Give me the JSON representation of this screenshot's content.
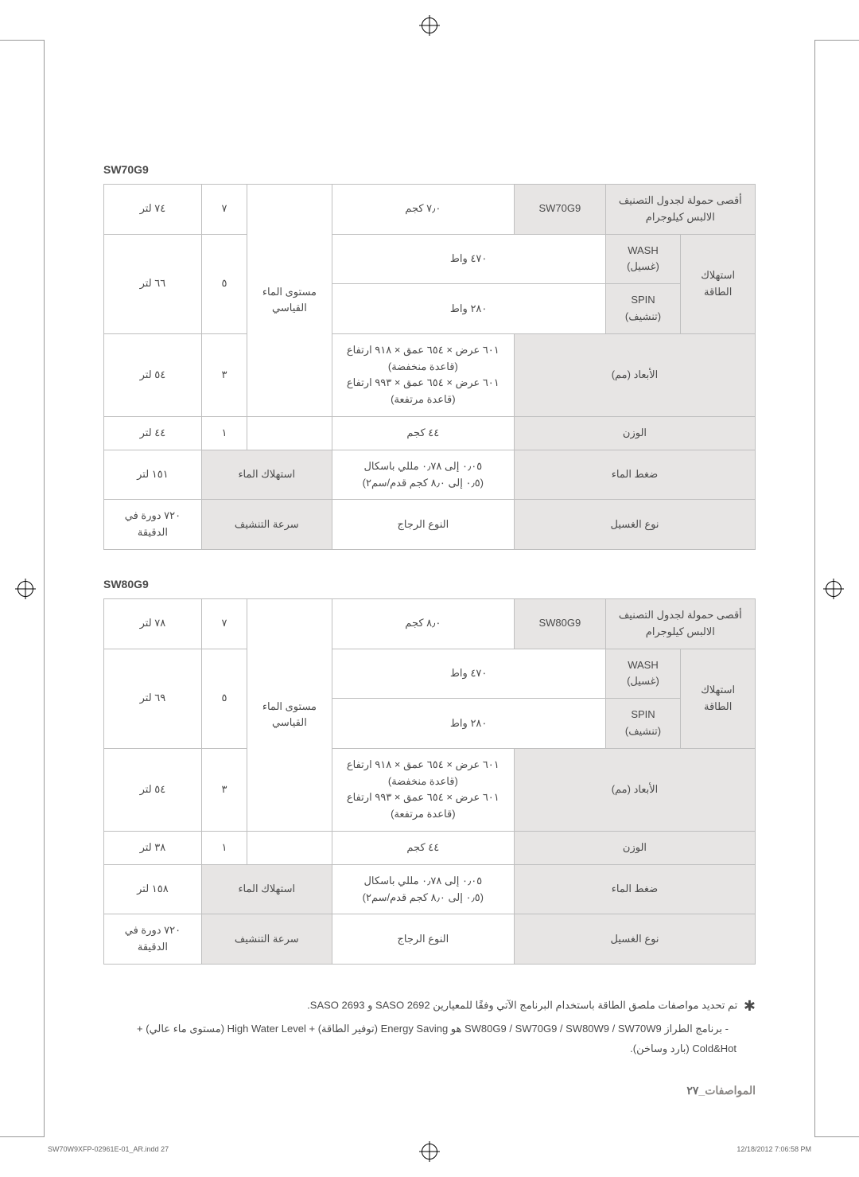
{
  "colors": {
    "border": "#bfbfbf",
    "shade": "#e7e5e4",
    "text": "#4a4a4a",
    "footer": "#8a8785"
  },
  "fonts": {
    "body_size_pt": 13,
    "heading_size_pt": 14,
    "heading_weight": "bold"
  },
  "tables": [
    {
      "heading": "SW70G9",
      "rows": {
        "capacity_label": "أقصى حمولة لجدول التصنيف الالبس كيلوجرام",
        "model": "SW70G9",
        "capacity_value": "٧٫٠ كجم",
        "power_label": "استهلاك الطاقة",
        "wash_label": "WASH (غسيل)",
        "wash_value": "٤٧٠ واط",
        "spin_label": "SPIN (تنشيف)",
        "spin_value": "٢٨٠ واط",
        "dims_label": "الأبعاد (مم)",
        "dims_value": "٦٠١ عرض × ٦٥٤ عمق × ٩١٨ ارتفاع\n(قاعدة منخفضة)\n٦٠١ عرض × ٦٥٤ عمق × ٩٩٣ ارتفاع\n(قاعدة مرتفعة)",
        "weight_label": "الوزن",
        "weight_value": "٤٤ كجم",
        "pressure_label": "ضغط الماء",
        "pressure_value": "٠٫٠٥ إلى ٠٫٧٨ مللي باسكال\n(٠٫٥ إلى ٨٫٠ كجم قدم/سم٢)",
        "wash_type_label": "نوع الغسيل",
        "wash_type_value": "النوع الرجاج",
        "water_level_label": "مستوى الماء القياسي",
        "levels": [
          {
            "n": "٧",
            "v": "٧٤ لتر"
          },
          {
            "n": "٥",
            "v": "٦٦ لتر"
          },
          {
            "n": "٣",
            "v": "٥٤ لتر"
          },
          {
            "n": "١",
            "v": "٤٤ لتر"
          }
        ],
        "water_cons_label": "استهلاك الماء",
        "water_cons_value": "١٥١ لتر",
        "spin_speed_label": "سرعة التنشيف",
        "spin_speed_value": "٧٢٠ دورة في الدقيقة"
      }
    },
    {
      "heading": "SW80G9",
      "rows": {
        "capacity_label": "أقصى حمولة لجدول التصنيف الالبس كيلوجرام",
        "model": "SW80G9",
        "capacity_value": "٨٫٠ كجم",
        "power_label": "استهلاك الطاقة",
        "wash_label": "WASH (غسيل)",
        "wash_value": "٤٧٠ واط",
        "spin_label": "SPIN (تنشيف)",
        "spin_value": "٢٨٠ واط",
        "dims_label": "الأبعاد (مم)",
        "dims_value": "٦٠١ عرض × ٦٥٤ عمق × ٩١٨ ارتفاع\n(قاعدة منخفضة)\n٦٠١ عرض × ٦٥٤ عمق × ٩٩٣ ارتفاع\n(قاعدة مرتفعة)",
        "weight_label": "الوزن",
        "weight_value": "٤٤ كجم",
        "pressure_label": "ضغط الماء",
        "pressure_value": "٠٫٠٥ إلى ٠٫٧٨ مللي باسكال\n(٠٫٥ إلى ٨٫٠ كجم قدم/سم٢)",
        "wash_type_label": "نوع الغسيل",
        "wash_type_value": "النوع الرجاج",
        "water_level_label": "مستوى الماء القياسي",
        "levels": [
          {
            "n": "٧",
            "v": "٧٨ لتر"
          },
          {
            "n": "٥",
            "v": "٦٩ لتر"
          },
          {
            "n": "٣",
            "v": "٥٤ لتر"
          },
          {
            "n": "١",
            "v": "٣٨ لتر"
          }
        ],
        "water_cons_label": "استهلاك الماء",
        "water_cons_value": "١٥٨ لتر",
        "spin_speed_label": "سرعة التنشيف",
        "spin_speed_value": "٧٢٠ دورة في الدقيقة"
      }
    }
  ],
  "notes": {
    "line1_prefix": "✱",
    "line1": "تم تحديد مواصفات ملصق الطاقة باستخدام البرنامج الآتي وفقًا للمعيارين SASO 2692 و SASO 2693.",
    "line2_prefix": "-",
    "line2": "برنامج الطراز SW80G9 / SW70G9 / SW80W9 / SW70W9 هو Energy Saving (توفير الطاقة) + High Water Level (مستوى ماء عالي) + Cold&Hot (بارد وساخن)."
  },
  "footer": {
    "section": "المواصفات",
    "page": "٢٧"
  },
  "print": {
    "file": "SW70W9XFP-02961E-01_AR.indd   27",
    "timestamp": "12/18/2012   7:06:58 PM"
  }
}
